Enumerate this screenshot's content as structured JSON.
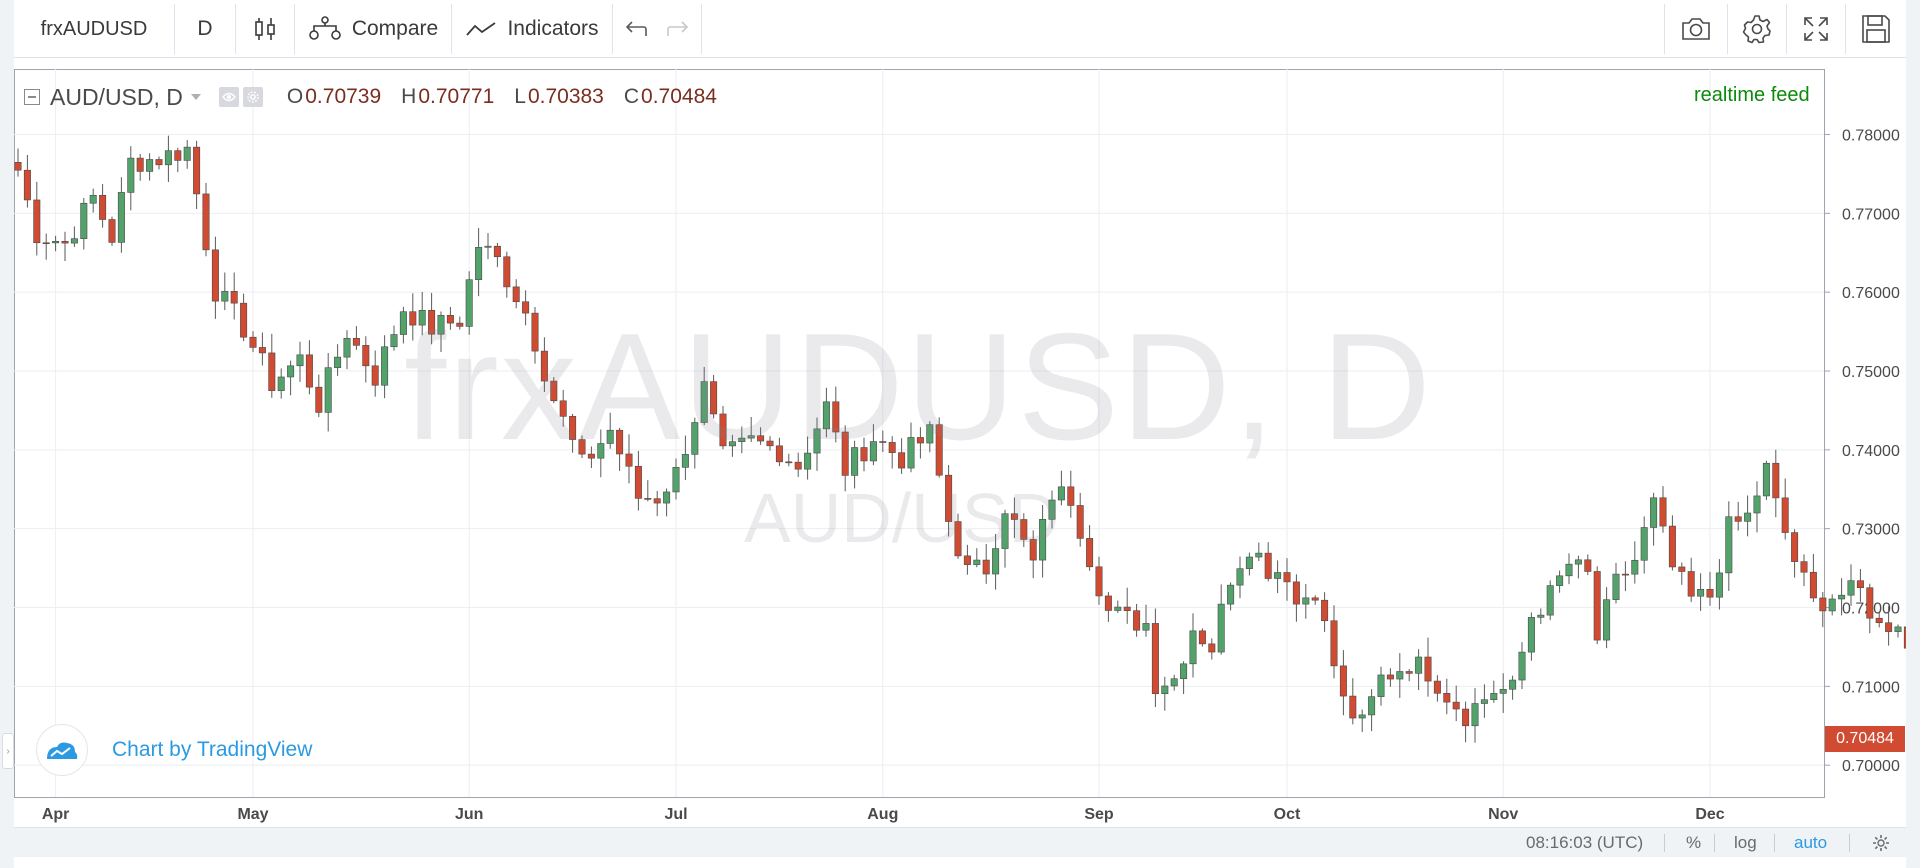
{
  "toolbar": {
    "symbol": "frxAUDUSD",
    "interval": "D",
    "compare_label": "Compare",
    "indicators_label": "Indicators"
  },
  "legend": {
    "symbol": "AUD/USD, D",
    "o_key": "O",
    "o_val": "0.70739",
    "h_key": "H",
    "h_val": "0.70771",
    "l_key": "L",
    "l_val": "0.70383",
    "c_key": "C",
    "c_val": "0.70484"
  },
  "realtime_label": "realtime feed",
  "watermark": {
    "title": "frxAUDUSD, D",
    "subtitle": "AUD/USD"
  },
  "branding": {
    "text": "Chart by TradingView"
  },
  "last_price": "0.70484",
  "colors": {
    "up": "#53a26b",
    "down": "#d04b32",
    "accent": "#2b9ae3"
  },
  "status": {
    "time": "08:16:03 (UTC)",
    "percent": "%",
    "log": "log",
    "auto": "auto"
  },
  "chart_data": {
    "type": "candlestick",
    "y_ticks": [
      "0.78000",
      "0.77000",
      "0.76000",
      "0.75000",
      "0.74000",
      "0.73000",
      "0.72000",
      "0.71000",
      "0.70000"
    ],
    "ylim": [
      0.6985,
      0.7845
    ],
    "x_ticks": [
      {
        "label": "Apr",
        "index": 4
      },
      {
        "label": "May",
        "index": 25
      },
      {
        "label": "Jun",
        "index": 48
      },
      {
        "label": "Jul",
        "index": 70
      },
      {
        "label": "Aug",
        "index": 92
      },
      {
        "label": "Sep",
        "index": 115
      },
      {
        "label": "Oct",
        "index": 135
      },
      {
        "label": "Nov",
        "index": 158
      },
      {
        "label": "Dec",
        "index": 180
      }
    ],
    "anchors": [
      [
        0,
        0.7755
      ],
      [
        2,
        0.7675
      ],
      [
        5,
        0.7662
      ],
      [
        8,
        0.772
      ],
      [
        10,
        0.767
      ],
      [
        12,
        0.7765
      ],
      [
        15,
        0.777
      ],
      [
        18,
        0.7782
      ],
      [
        19,
        0.7725
      ],
      [
        21,
        0.7603
      ],
      [
        24,
        0.7555
      ],
      [
        27,
        0.7485
      ],
      [
        30,
        0.7515
      ],
      [
        32,
        0.7458
      ],
      [
        35,
        0.755
      ],
      [
        38,
        0.7493
      ],
      [
        41,
        0.758
      ],
      [
        44,
        0.7555
      ],
      [
        47,
        0.7565
      ],
      [
        49,
        0.766
      ],
      [
        51,
        0.764
      ],
      [
        54,
        0.7575
      ],
      [
        57,
        0.7465
      ],
      [
        60,
        0.738
      ],
      [
        63,
        0.7425
      ],
      [
        66,
        0.734
      ],
      [
        68,
        0.734
      ],
      [
        70,
        0.737
      ],
      [
        73,
        0.7478
      ],
      [
        75,
        0.739
      ],
      [
        78,
        0.741
      ],
      [
        81,
        0.74
      ],
      [
        83,
        0.738
      ],
      [
        86,
        0.7455
      ],
      [
        88,
        0.7375
      ],
      [
        91,
        0.7415
      ],
      [
        94,
        0.739
      ],
      [
        97,
        0.742
      ],
      [
        99,
        0.731
      ],
      [
        101,
        0.7245
      ],
      [
        103,
        0.725
      ],
      [
        105,
        0.733
      ],
      [
        108,
        0.7255
      ],
      [
        110,
        0.7345
      ],
      [
        112,
        0.734
      ],
      [
        114,
        0.7265
      ],
      [
        116,
        0.7195
      ],
      [
        118,
        0.7185
      ],
      [
        120,
        0.718
      ],
      [
        121,
        0.7105
      ],
      [
        123,
        0.711
      ],
      [
        125,
        0.7175
      ],
      [
        127,
        0.715
      ],
      [
        129,
        0.724
      ],
      [
        131,
        0.728
      ],
      [
        133,
        0.725
      ],
      [
        135,
        0.7245
      ],
      [
        136,
        0.7205
      ],
      [
        138,
        0.7225
      ],
      [
        139,
        0.7175
      ],
      [
        141,
        0.708
      ],
      [
        143,
        0.705
      ],
      [
        145,
        0.711
      ],
      [
        148,
        0.713
      ],
      [
        150,
        0.712
      ],
      [
        152,
        0.709
      ],
      [
        154,
        0.7065
      ],
      [
        157,
        0.7095
      ],
      [
        159,
        0.7095
      ],
      [
        161,
        0.719
      ],
      [
        163,
        0.7215
      ],
      [
        165,
        0.7255
      ],
      [
        167,
        0.724
      ],
      [
        168,
        0.716
      ],
      [
        170,
        0.723
      ],
      [
        172,
        0.726
      ],
      [
        174,
        0.733
      ],
      [
        176,
        0.725
      ],
      [
        178,
        0.721
      ],
      [
        180,
        0.7215
      ],
      [
        182,
        0.73
      ],
      [
        184,
        0.7315
      ],
      [
        186,
        0.7375
      ],
      [
        187,
        0.733
      ],
      [
        189,
        0.726
      ],
      [
        191,
        0.7205
      ],
      [
        193,
        0.7215
      ],
      [
        196,
        0.722
      ],
      [
        198,
        0.7175
      ],
      [
        200,
        0.7185
      ],
      [
        202,
        0.711
      ],
      [
        203,
        0.704
      ],
      [
        205,
        0.7045
      ],
      [
        207,
        0.707
      ],
      [
        208,
        0.7048
      ]
    ]
  }
}
